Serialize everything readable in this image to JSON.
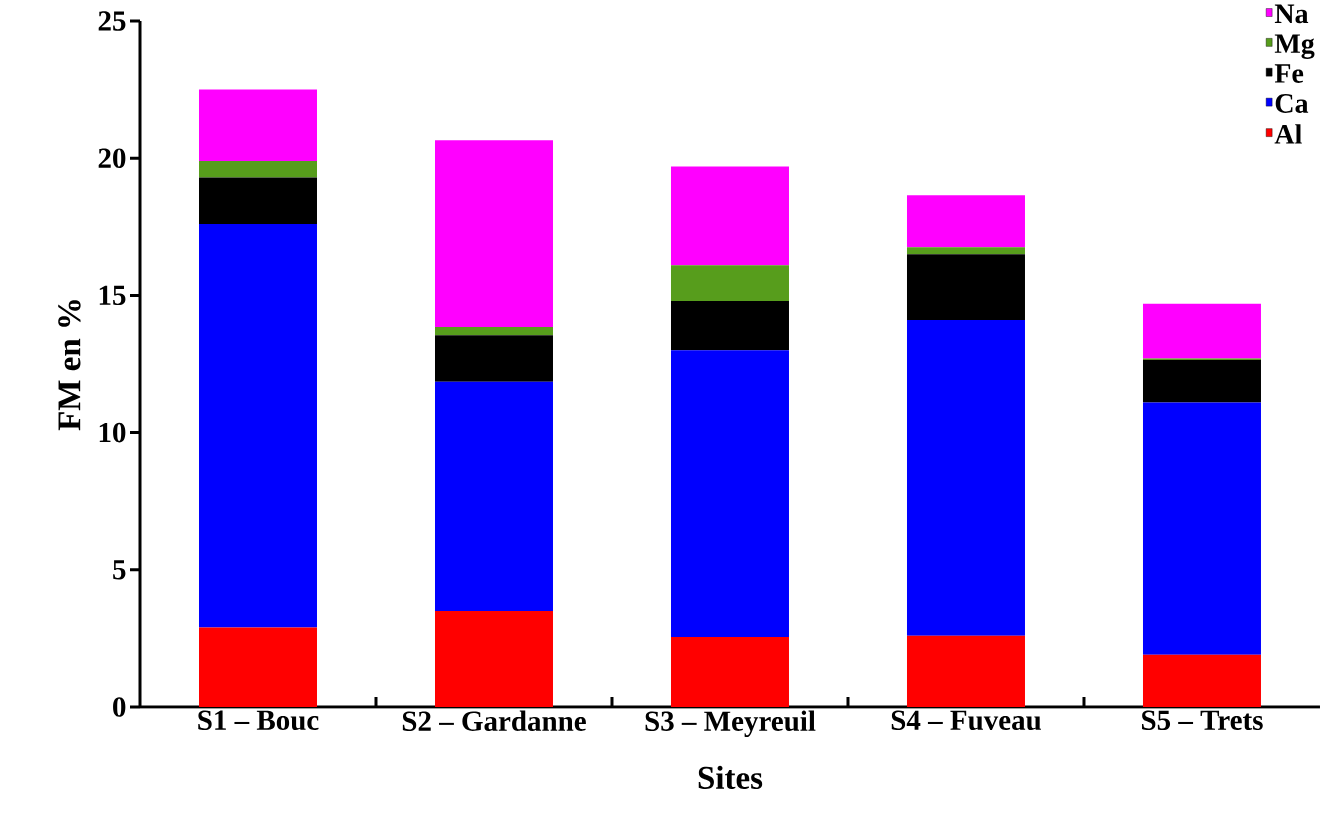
{
  "chart_data": {
    "type": "bar",
    "stacked": true,
    "xlabel": "Sites",
    "ylabel": "FM en %",
    "categories": [
      "S1 – Bouc",
      "S2 – Gardanne",
      "S3 – Meyreuil",
      "S4 – Fuveau",
      "S5 – Trets"
    ],
    "series": [
      {
        "name": "Al",
        "color": "#ff0000",
        "values": [
          2.9,
          3.5,
          2.55,
          2.6,
          1.9
        ]
      },
      {
        "name": "Ca",
        "color": "#0000ff",
        "values": [
          14.7,
          8.35,
          10.45,
          11.5,
          9.2
        ]
      },
      {
        "name": "Fe",
        "color": "#000000",
        "values": [
          1.7,
          1.7,
          1.8,
          2.4,
          1.55
        ]
      },
      {
        "name": "Mg",
        "color": "#579d1c",
        "values": [
          0.6,
          0.3,
          1.3,
          0.25,
          0.05
        ]
      },
      {
        "name": "Na",
        "color": "#ff00ff",
        "values": [
          2.6,
          6.8,
          3.6,
          1.9,
          2.0
        ]
      }
    ],
    "ylim": [
      0,
      25
    ],
    "yticks": [
      0,
      5,
      10,
      15,
      20,
      25
    ],
    "legend": "top right",
    "grid": false
  }
}
